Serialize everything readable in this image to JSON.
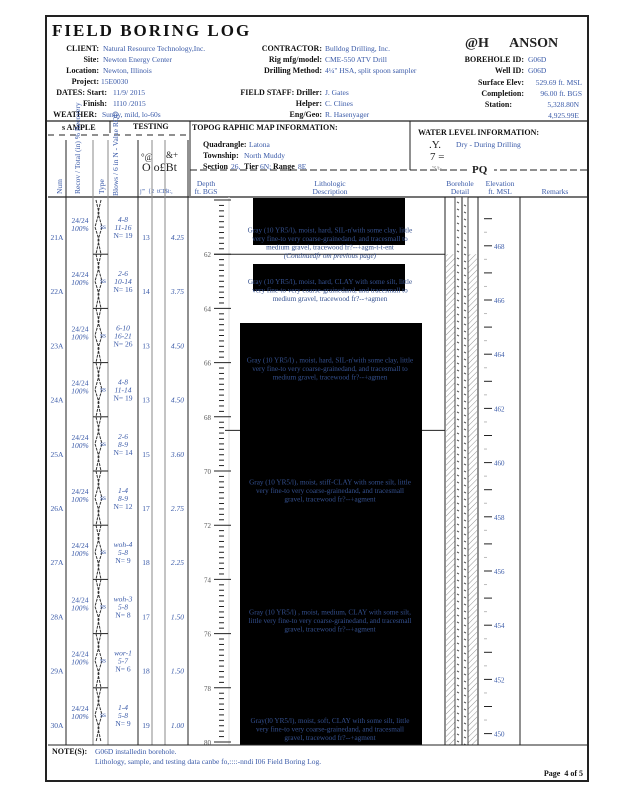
{
  "title": "FIELD BORING LOG",
  "logo_text": "@H      ANSON",
  "client": {
    "label": "CLIENT:",
    "value": "Natural Resource Technology,Inc."
  },
  "site": {
    "label": "Site:",
    "value": "Newton Energy Center"
  },
  "location": {
    "label": "Location:",
    "value": "Newton, Illinois"
  },
  "project": {
    "label": "Project:",
    "value": "15E0030"
  },
  "dates": {
    "label": "DATES: Start:",
    "start": "11/9/ 2015",
    "finish_label": "Finish:",
    "finish": "1I10 /2015"
  },
  "weather": {
    "label": "WEATHER:",
    "value": "Sunny, mild, lo-60s"
  },
  "contractor": {
    "label": "CONTRACTOR:",
    "value": "Bulldog Drilling, Inc."
  },
  "rig": {
    "label": "Rig mfg/model:",
    "value": "CME-550 ATV Drill"
  },
  "drilling_method": {
    "label": "Drilling Method:",
    "value": "4¼\" HSA, split spoon sampler"
  },
  "field_staff": {
    "driller_label": "FIELD STAFF: Driller:",
    "driller": "J. Gates",
    "helper_label": "Helper:",
    "helper": "C. Clines",
    "eng_label": "Eng/Geo:",
    "eng": "R. Hasenyager"
  },
  "borehole_id": {
    "label": "BOREHOLE ID:",
    "value": "G06D"
  },
  "well_id": {
    "label": "Well ID:",
    "value": "G06D"
  },
  "surface_elev": {
    "label": "Surface Elev:",
    "value": "529.69 ft. MSL"
  },
  "completion": {
    "label": "Completion:",
    "value": "96.00 ft. BGS"
  },
  "station": {
    "label": "Station:",
    "north": "5,328.80N",
    "east": "4,925.99E"
  },
  "sections": {
    "sample": "s AMPLE",
    "testing": "TESTING",
    "topo": "TOPOG RAPHIC MAP INFORMATION:",
    "water": "WATER LEVEL INFORMATION:"
  },
  "topo": {
    "quad_label": "Quadrangle:",
    "quad": "Latona",
    "twp_label": "Township:",
    "twp": "North Muddy",
    "sec_label": "Section",
    "sec": "26,",
    "tier_label": "Tier",
    "tier": "6N;",
    "range_label": "Range",
    "range": "8E"
  },
  "water": {
    "sym1": ".Y.",
    "text1": "Dry - During Drilling",
    "sym2": "7 =",
    "sym3": "'S/t-",
    "pq": "PQ"
  },
  "columns": {
    "num": "Num",
    "recovery": "Recov / Total (in) % Recovery",
    "type": "Type",
    "blows": "Blows / 6 in N - Value RQD",
    "garble1": "°@",
    "garble2": "&+",
    "garble3": "O o£Bt",
    "garble4": "j'\"  {2  tCI$i:,",
    "depth": "Depth",
    "depth2": "ft. BGS",
    "litho": "Lithologic",
    "litho2": "Description",
    "borehole": "Borehole",
    "borehole2": "Detail",
    "elev": "Elevation",
    "elev2": "ft. MSL",
    "remarks": "Remarks"
  },
  "samples": [
    {
      "num": "21A",
      "recovery": "24/24",
      "pct": "100%",
      "type": "ss",
      "blows1": "4-8",
      "blows2": "11-16",
      "n": "N= 19",
      "moisture": "13",
      "qu": "4.25"
    },
    {
      "num": "22A",
      "recovery": "24/24",
      "pct": "100%",
      "type": "ss",
      "blows1": "2-6",
      "blows2": "10-14",
      "n": "N= 16",
      "moisture": "14",
      "qu": "3.75"
    },
    {
      "num": "23A",
      "recovery": "24/24",
      "pct": "100%",
      "type": "ss",
      "blows1": "6-10",
      "blows2": "16-21",
      "n": "N= 26",
      "moisture": "13",
      "qu": "4.50"
    },
    {
      "num": "24A",
      "recovery": "24/24",
      "pct": "100%",
      "type": "ss",
      "blows1": "4-8",
      "blows2": "11-14",
      "n": "N= 19",
      "moisture": "13",
      "qu": "4.50"
    },
    {
      "num": "25A",
      "recovery": "24/24",
      "pct": "100%",
      "type": "ss",
      "blows1": "2-6",
      "blows2": "8-9",
      "n": "N= 14",
      "moisture": "15",
      "qu": "3.60"
    },
    {
      "num": "26A",
      "recovery": "24/24",
      "pct": "100%",
      "type": "ss",
      "blows1": "1-4",
      "blows2": "8-9",
      "n": "N= 12",
      "moisture": "17",
      "qu": "2.75"
    },
    {
      "num": "27A",
      "recovery": "24/24",
      "pct": "100%",
      "type": "ss",
      "blows1": "woh-4",
      "blows2": "5-8",
      "n": "N= 9",
      "moisture": "18",
      "qu": "2.25"
    },
    {
      "num": "28A",
      "recovery": "24/24",
      "pct": "100%",
      "type": "ss",
      "blows1": "woh-3",
      "blows2": "5-8",
      "n": "N= 8",
      "moisture": "17",
      "qu": "1.50"
    },
    {
      "num": "29A",
      "recovery": "24/24",
      "pct": "100%",
      "type": "ss",
      "blows1": "wor-1",
      "blows2": "5-7",
      "n": "N= 6",
      "moisture": "18",
      "qu": "1.50"
    },
    {
      "num": "30A",
      "recovery": "24/24",
      "pct": "100%",
      "type": "ss",
      "blows1": "1-4",
      "blows2": "5-8",
      "n": "N= 9",
      "moisture": "19",
      "qu": "1.00"
    }
  ],
  "depth_labels": [
    "62",
    "64",
    "66",
    "68",
    "70",
    "72",
    "74",
    "76",
    "78",
    "80"
  ],
  "elevation_labels": [
    "468",
    "466",
    "464",
    "462",
    "460",
    "458",
    "456",
    "454",
    "452",
    "450"
  ],
  "descriptions": [
    {
      "depth": 61.2,
      "lines": [
        "Gray (10 YR5/l), moist, hard, SIL-n'with some clay, little",
        "very fine-to very coarse-grainedand, and tracesmall to",
        "medium gravel, tracewood fr?--+agm-t-t-ent"
      ],
      "note": "(Continuedfr om previous page)"
    },
    {
      "depth": 63.1,
      "lines": [
        "Gray (10 YR5/l), moist, hard, CLAY with some silt, little",
        "very fine-to very coarse-grainedand, and tracesmall to",
        "medium gravel, tracewood fr?--+agmen"
      ]
    },
    {
      "depth": 66.0,
      "lines": [
        "Gray (10 YR5/l) , moist, hard, SIL-n'with some clay, little",
        "very fine-to very coarse-grainedand, and tracesmall to",
        "medium gravel, tracewood fr?--+agmen"
      ]
    },
    {
      "depth": 70.5,
      "lines": [
        "Gray (10 YR5/l), moist, stiff-CLAY with some silt, little",
        "very fine-to very coarse-grainedand, and tracesmall",
        "gravel, tracewood fr?--+agment"
      ]
    },
    {
      "depth": 75.3,
      "lines": [
        "Gray (10 YR5/l) , moist, medium, CLAY with some silt,",
        "little very fine-to very coarse-grainedand, and tracesmall",
        "gravel, tracewood fr?--+agment"
      ]
    },
    {
      "depth": 79.3,
      "lines": [
        "Gray(l0 YR5/l), moist, soft, CLAY with some silt, little",
        "very fine-to very coarse-grainedand, and tracesmall",
        "gravel, tracewood fr?--+agment"
      ]
    }
  ],
  "notes": {
    "label": "NOTE(S):",
    "line1": "G06D installedin borehole.",
    "line2": "Lithology, sample, and testing data canbe fo,::::-nndi I06 Field Boring Log."
  },
  "page": "Page  4 of 5"
}
